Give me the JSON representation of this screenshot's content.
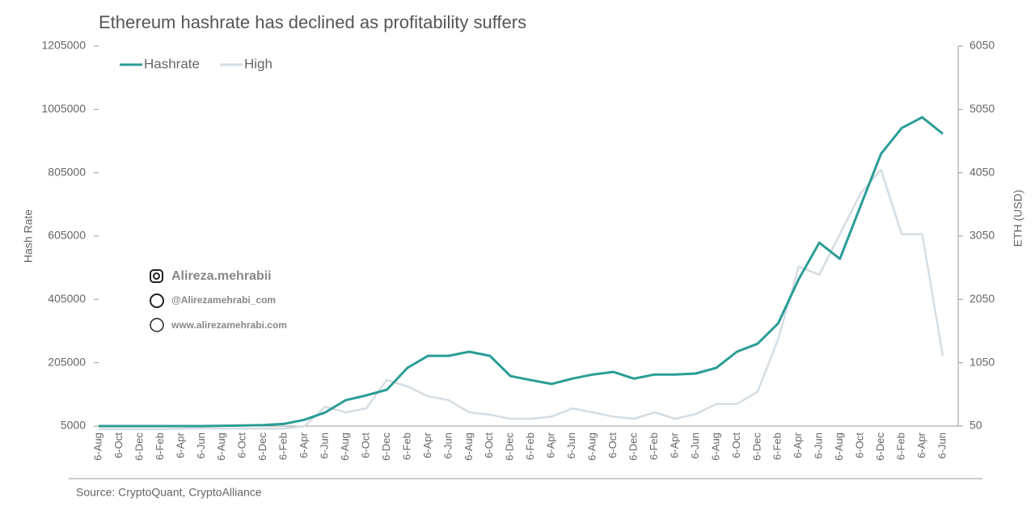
{
  "chart_data": {
    "type": "line",
    "title": "Ethereum hashrate has declined as profitability suffers",
    "source": "Source: CryptoQuant, CryptoAlliance",
    "ylabel": "Hash Rate",
    "y2label": "ETH (USD)",
    "annotations": [
      "Alireza.mehrabii",
      "@Alirezamehrabi_com",
      "www.alirezamehrabi.com"
    ],
    "categories": [
      "6-Aug",
      "6-Oct",
      "6-Dec",
      "6-Feb",
      "6-Apr",
      "6-Jun",
      "6-Aug",
      "6-Oct",
      "6-Dec",
      "6-Feb",
      "6-Apr",
      "6-Jun",
      "6-Aug",
      "6-Oct",
      "6-Dec",
      "6-Feb",
      "6-Apr",
      "6-Jun",
      "6-Aug",
      "6-Oct",
      "6-Dec",
      "6-Feb",
      "6-Apr",
      "6-Jun",
      "6-Aug",
      "6-Oct",
      "6-Dec",
      "6-Feb",
      "6-Apr",
      "6-Jun",
      "6-Aug",
      "6-Oct",
      "6-Dec",
      "6-Feb",
      "6-Apr",
      "6-Jun",
      "6-Aug",
      "6-Oct",
      "6-Dec",
      "6-Feb",
      "6-Apr",
      "6-Jun"
    ],
    "series": [
      {
        "name": "Hashrate",
        "color": "#2a9d96",
        "values": [
          5000,
          5000,
          5000,
          5000,
          5000,
          5000,
          6000,
          7000,
          8000,
          12000,
          25000,
          48000,
          87000,
          102000,
          120000,
          189000,
          227000,
          227000,
          240000,
          227000,
          163000,
          150000,
          138000,
          155000,
          168000,
          176000,
          155000,
          168000,
          168000,
          171000,
          189000,
          240000,
          265000,
          329000,
          469000,
          584000,
          533000,
          699000,
          865000,
          946000,
          980000,
          928000
        ]
      },
      {
        "name": "High",
        "color": "#d5dde3",
        "axis": "y2",
        "values": [
          3,
          1,
          1,
          3,
          9,
          15,
          11,
          12,
          8,
          12,
          50,
          356,
          267,
          330,
          780,
          675,
          520,
          460,
          267,
          230,
          165,
          165,
          200,
          330,
          267,
          200,
          165,
          267,
          165,
          240,
          400,
          400,
          590,
          1420,
          2570,
          2440,
          3080,
          3720,
          4100,
          3080,
          3080,
          1160
        ]
      }
    ],
    "ylim": [
      5000,
      1205000
    ],
    "yticks": [
      5000,
      205000,
      405000,
      605000,
      805000,
      1005000,
      1205000
    ],
    "y2lim": [
      50,
      6050
    ],
    "y2ticks": [
      50,
      1050,
      2050,
      3050,
      4050,
      5050,
      6050
    ]
  }
}
